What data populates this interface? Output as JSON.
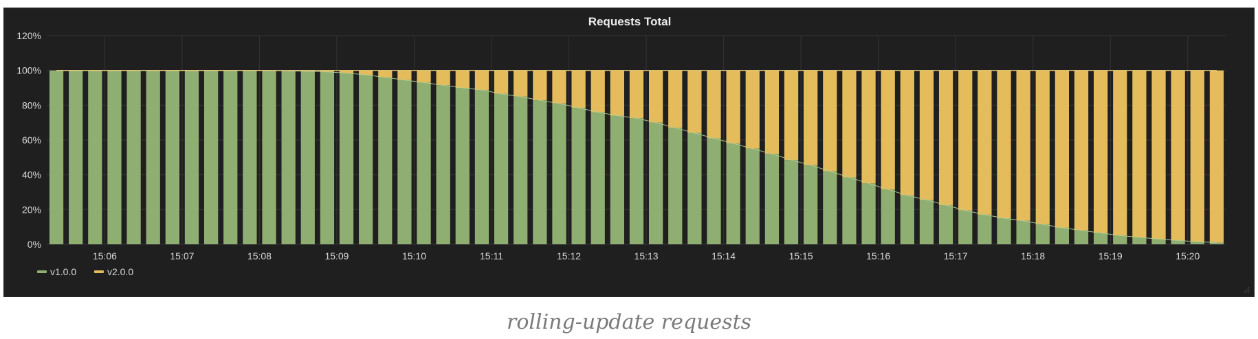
{
  "caption": "rolling-update requests",
  "chart_data": {
    "type": "bar",
    "stacked": true,
    "title": "Requests Total",
    "xlabel": "",
    "ylabel": "",
    "ylim": [
      0,
      120
    ],
    "y_ticks": [
      "0%",
      "20%",
      "40%",
      "60%",
      "80%",
      "100%",
      "120%"
    ],
    "x_ticks": [
      "15:06",
      "15:07",
      "15:08",
      "15:09",
      "15:10",
      "15:11",
      "15:12",
      "15:13",
      "15:14",
      "15:15",
      "15:16",
      "15:17",
      "15:18",
      "15:19",
      "15:20"
    ],
    "x_start": "15:05:15",
    "x_step_seconds": 15,
    "grid": true,
    "legend_position": "bottom-left",
    "series": [
      {
        "name": "v1.0.0",
        "color": "#8fae72",
        "values": [
          100,
          100,
          100,
          100,
          100,
          100,
          100,
          100,
          100,
          100,
          100,
          100,
          99.8,
          99.5,
          99.2,
          98.5,
          97.5,
          96,
          94.5,
          93,
          91.5,
          90,
          88.8,
          86.5,
          85,
          82.8,
          81,
          78.5,
          76,
          74,
          72.5,
          70,
          67,
          64,
          61,
          58,
          55,
          52,
          48.5,
          45.5,
          42,
          38.5,
          35,
          31.5,
          28.2,
          25.5,
          22.5,
          19.5,
          17,
          15,
          13.5,
          11.5,
          9.5,
          8,
          6.5,
          5,
          4,
          3,
          2.2,
          1.5,
          1
        ]
      },
      {
        "name": "v2.0.0",
        "color": "#e5bc5b",
        "values": [
          0,
          0,
          0,
          0,
          0,
          0,
          0,
          0,
          0,
          0,
          0,
          0,
          0.2,
          0.5,
          0.8,
          1.5,
          2.5,
          4,
          5.5,
          7,
          8.5,
          10,
          11.2,
          13.5,
          15,
          17.2,
          19,
          21.5,
          24,
          26,
          27.5,
          30,
          33,
          36,
          39,
          42,
          45,
          48,
          51.5,
          54.5,
          58,
          61.5,
          65,
          68.5,
          71.8,
          74.5,
          77.5,
          80.5,
          83,
          85,
          86.5,
          88.5,
          90.5,
          92,
          93.5,
          95,
          96,
          97,
          97.8,
          98.5,
          99
        ]
      }
    ]
  }
}
